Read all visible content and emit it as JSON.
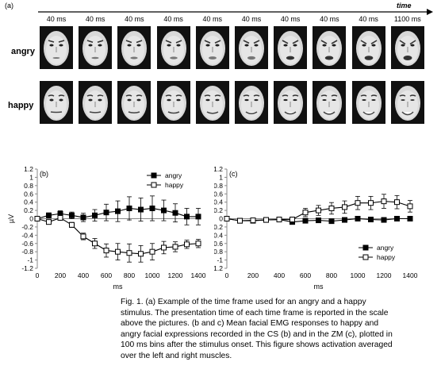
{
  "panel_a": {
    "label": "(a)",
    "time_label": "time",
    "frame_durations": [
      "40 ms",
      "40 ms",
      "40 ms",
      "40 ms",
      "40 ms",
      "40 ms",
      "40 ms",
      "40 ms",
      "40 ms",
      "1100 ms"
    ],
    "rows": [
      {
        "label": "angry"
      },
      {
        "label": "happy"
      }
    ]
  },
  "caption": {
    "lines": [
      "Fig. 1. (a) Example of the time frame used for an angry and a happy",
      "stimulus. The presentation time of each time frame is reported in the scale",
      "above the pictures. (b and c) Mean facial EMG responses to happy and",
      "angry facial expressions recorded in the CS (b) and in the ZM (c), plotted in",
      "100 ms bins after the stimulus onset. This figure shows activation averaged",
      "over the left and right  muscles."
    ]
  },
  "chart_data": [
    {
      "type": "line",
      "panel": "(b)",
      "xlabel": "ms",
      "ylabel": "µV",
      "xlim": [
        0,
        1400
      ],
      "ylim": [
        -1.2,
        1.2
      ],
      "x_ticks": [
        0,
        200,
        400,
        600,
        800,
        1000,
        1200,
        1400
      ],
      "y_ticks": [
        1.2,
        1,
        0.8,
        0.6,
        0.4,
        0.2,
        0,
        -0.2,
        -0.4,
        -0.6,
        -0.8,
        -1,
        -1.2
      ],
      "y_tick_labels": [
        "1.2",
        "1",
        "0.8",
        "0.6",
        "0.4",
        "0.2",
        "0",
        "-0.2",
        "-0.4",
        "-0.6",
        "-0.8",
        "-1",
        "-1.2"
      ],
      "legend_position": "top-right",
      "x": [
        0,
        100,
        200,
        300,
        400,
        500,
        600,
        700,
        800,
        900,
        1000,
        1100,
        1200,
        1300,
        1400
      ],
      "series": [
        {
          "name": "angry",
          "marker": "filled-square",
          "values": [
            0.0,
            0.08,
            0.12,
            0.08,
            0.03,
            0.08,
            0.15,
            0.18,
            0.25,
            0.22,
            0.25,
            0.2,
            0.14,
            0.05,
            0.05
          ],
          "error": [
            0.02,
            0.06,
            0.07,
            0.08,
            0.1,
            0.14,
            0.2,
            0.25,
            0.28,
            0.28,
            0.3,
            0.25,
            0.22,
            0.2,
            0.2
          ]
        },
        {
          "name": "happy",
          "marker": "open-square",
          "values": [
            0.0,
            -0.08,
            0.02,
            -0.15,
            -0.43,
            -0.6,
            -0.77,
            -0.8,
            -0.83,
            -0.85,
            -0.8,
            -0.7,
            -0.68,
            -0.62,
            -0.6
          ],
          "error": [
            0.02,
            0.05,
            0.05,
            0.06,
            0.08,
            0.12,
            0.16,
            0.2,
            0.22,
            0.2,
            0.2,
            0.15,
            0.12,
            0.1,
            0.1
          ]
        }
      ]
    },
    {
      "type": "line",
      "panel": "(c)",
      "xlabel": "ms",
      "ylabel": "µV",
      "xlim": [
        0,
        1400
      ],
      "ylim": [
        -1.2,
        1.2
      ],
      "x_ticks": [
        0,
        200,
        400,
        600,
        800,
        1000,
        1200,
        1400
      ],
      "y_ticks": [
        1.2,
        1,
        0.8,
        0.6,
        0.4,
        0.2,
        0,
        -0.2,
        -0.4,
        -0.6,
        -0.8,
        -1,
        -1.2
      ],
      "y_tick_labels": [
        "1.2",
        "1",
        "0.8",
        "0.6",
        "0.4",
        "0.2",
        "0",
        "-0.2",
        "-0.4",
        "-0.6",
        "-0.8",
        "-1",
        "-1.2"
      ],
      "legend_position": "bottom-right",
      "x": [
        0,
        100,
        200,
        300,
        400,
        500,
        600,
        700,
        800,
        900,
        1000,
        1100,
        1200,
        1300,
        1400
      ],
      "series": [
        {
          "name": "angry",
          "marker": "filled-square",
          "values": [
            0.0,
            -0.05,
            -0.05,
            -0.03,
            -0.02,
            -0.08,
            -0.05,
            -0.04,
            -0.06,
            -0.03,
            0.0,
            -0.02,
            -0.03,
            0.0,
            0.0
          ],
          "error": [
            0.02,
            0.02,
            0.02,
            0.02,
            0.03,
            0.03,
            0.04,
            0.04,
            0.04,
            0.04,
            0.05,
            0.05,
            0.05,
            0.05,
            0.05
          ]
        },
        {
          "name": "happy",
          "marker": "open-square",
          "values": [
            0.0,
            -0.05,
            -0.04,
            -0.03,
            -0.02,
            -0.02,
            0.15,
            0.2,
            0.25,
            0.28,
            0.38,
            0.38,
            0.42,
            0.4,
            0.3
          ],
          "error": [
            0.02,
            0.03,
            0.03,
            0.03,
            0.04,
            0.06,
            0.1,
            0.12,
            0.14,
            0.15,
            0.16,
            0.16,
            0.17,
            0.16,
            0.14
          ]
        }
      ]
    }
  ]
}
